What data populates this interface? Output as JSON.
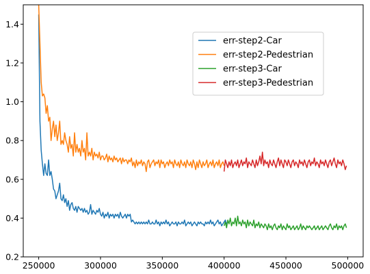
{
  "chart_data": {
    "type": "line",
    "title": "",
    "xlabel": "",
    "ylabel": "",
    "xlim": [
      237500,
      512500
    ],
    "ylim": [
      0.2,
      1.5
    ],
    "x_ticks": [
      250000,
      300000,
      350000,
      400000,
      450000,
      500000
    ],
    "x_tick_labels": [
      "250000",
      "300000",
      "350000",
      "400000",
      "450000",
      "500000"
    ],
    "y_ticks": [
      0.2,
      0.4,
      0.6,
      0.8,
      1.0,
      1.2,
      1.4
    ],
    "y_tick_labels": [
      "0.2",
      "0.4",
      "0.6",
      "0.8",
      "1.0",
      "1.2",
      "1.4"
    ],
    "grid": false,
    "legend_position": "upper-right",
    "series": [
      {
        "name": "err-step2-Car",
        "color": "#1f77b4",
        "x_start": 250000,
        "x_step": 1000,
        "values": [
          1.45,
          0.9,
          0.75,
          0.68,
          0.62,
          0.68,
          0.63,
          0.62,
          0.7,
          0.62,
          0.64,
          0.6,
          0.55,
          0.54,
          0.5,
          0.52,
          0.54,
          0.58,
          0.5,
          0.49,
          0.52,
          0.48,
          0.5,
          0.46,
          0.49,
          0.44,
          0.47,
          0.48,
          0.45,
          0.44,
          0.46,
          0.43,
          0.46,
          0.45,
          0.44,
          0.45,
          0.43,
          0.45,
          0.43,
          0.44,
          0.42,
          0.43,
          0.47,
          0.42,
          0.44,
          0.43,
          0.42,
          0.44,
          0.43,
          0.45,
          0.42,
          0.41,
          0.43,
          0.4,
          0.42,
          0.41,
          0.43,
          0.4,
          0.42,
          0.41,
          0.42,
          0.4,
          0.42,
          0.41,
          0.42,
          0.4,
          0.43,
          0.41,
          0.4,
          0.41,
          0.42,
          0.4,
          0.42,
          0.41,
          0.42,
          0.38,
          0.39,
          0.38,
          0.37,
          0.38,
          0.37,
          0.38,
          0.37,
          0.38,
          0.37,
          0.38,
          0.37,
          0.38,
          0.37,
          0.39,
          0.37,
          0.37,
          0.38,
          0.37,
          0.37,
          0.39,
          0.37,
          0.38,
          0.36,
          0.38,
          0.37,
          0.38,
          0.37,
          0.39,
          0.37,
          0.38,
          0.36,
          0.37,
          0.38,
          0.37,
          0.37,
          0.38,
          0.36,
          0.38,
          0.37,
          0.37,
          0.38,
          0.37,
          0.39,
          0.36,
          0.37,
          0.38,
          0.37,
          0.38,
          0.36,
          0.37,
          0.38,
          0.37,
          0.36,
          0.38,
          0.37,
          0.38,
          0.37,
          0.37,
          0.36,
          0.38,
          0.37,
          0.38,
          0.37,
          0.39,
          0.37,
          0.38,
          0.36,
          0.37,
          0.38,
          0.39,
          0.37,
          0.38,
          0.36,
          0.37,
          0.38,
          0.39,
          0.37,
          0.38
        ]
      },
      {
        "name": "err-step2-Pedestrian",
        "color": "#ff7f0e",
        "x_start": 250000,
        "x_step": 1000,
        "values": [
          1.5,
          1.3,
          1.1,
          1.03,
          1.04,
          1.02,
          0.94,
          0.98,
          0.9,
          0.92,
          0.8,
          0.86,
          0.9,
          0.82,
          0.88,
          0.8,
          0.84,
          0.9,
          0.78,
          0.8,
          0.78,
          0.84,
          0.8,
          0.78,
          0.74,
          0.82,
          0.76,
          0.78,
          0.72,
          0.84,
          0.74,
          0.78,
          0.74,
          0.76,
          0.72,
          0.8,
          0.74,
          0.76,
          0.7,
          0.84,
          0.72,
          0.74,
          0.72,
          0.76,
          0.7,
          0.74,
          0.72,
          0.73,
          0.71,
          0.74,
          0.7,
          0.72,
          0.72,
          0.7,
          0.71,
          0.73,
          0.69,
          0.72,
          0.7,
          0.71,
          0.69,
          0.72,
          0.7,
          0.71,
          0.69,
          0.7,
          0.71,
          0.68,
          0.71,
          0.69,
          0.7,
          0.7,
          0.68,
          0.7,
          0.69,
          0.71,
          0.67,
          0.69,
          0.66,
          0.7,
          0.67,
          0.69,
          0.68,
          0.7,
          0.67,
          0.69,
          0.68,
          0.64,
          0.69,
          0.7,
          0.66,
          0.68,
          0.69,
          0.7,
          0.67,
          0.69,
          0.68,
          0.7,
          0.66,
          0.7,
          0.68,
          0.69,
          0.66,
          0.68,
          0.69,
          0.67,
          0.7,
          0.68,
          0.69,
          0.66,
          0.7,
          0.68,
          0.67,
          0.69,
          0.66,
          0.7,
          0.68,
          0.67,
          0.69,
          0.66,
          0.7,
          0.68,
          0.67,
          0.69,
          0.66,
          0.7,
          0.68,
          0.65,
          0.69,
          0.66,
          0.7,
          0.68,
          0.66,
          0.69,
          0.67,
          0.68,
          0.7,
          0.66,
          0.68,
          0.69,
          0.67,
          0.7,
          0.66,
          0.68,
          0.69,
          0.67,
          0.7,
          0.66,
          0.68,
          0.69,
          0.67
        ]
      },
      {
        "name": "err-step3-Car",
        "color": "#2ca02c",
        "x_start": 400000,
        "x_step": 1000,
        "values": [
          0.36,
          0.38,
          0.35,
          0.39,
          0.37,
          0.4,
          0.36,
          0.38,
          0.37,
          0.4,
          0.36,
          0.41,
          0.37,
          0.38,
          0.36,
          0.39,
          0.37,
          0.38,
          0.35,
          0.39,
          0.36,
          0.38,
          0.37,
          0.36,
          0.39,
          0.35,
          0.37,
          0.36,
          0.38,
          0.35,
          0.37,
          0.36,
          0.35,
          0.37,
          0.36,
          0.34,
          0.37,
          0.35,
          0.36,
          0.34,
          0.36,
          0.37,
          0.35,
          0.34,
          0.36,
          0.35,
          0.37,
          0.34,
          0.36,
          0.35,
          0.34,
          0.37,
          0.35,
          0.36,
          0.34,
          0.35,
          0.36,
          0.34,
          0.35,
          0.36,
          0.34,
          0.35,
          0.37,
          0.34,
          0.36,
          0.35,
          0.34,
          0.36,
          0.35,
          0.36,
          0.35,
          0.34,
          0.35,
          0.36,
          0.34,
          0.35,
          0.36,
          0.34,
          0.35,
          0.36,
          0.34,
          0.35,
          0.36,
          0.35,
          0.34,
          0.36,
          0.37,
          0.35,
          0.34,
          0.36,
          0.35,
          0.37,
          0.34,
          0.36,
          0.35,
          0.36,
          0.34,
          0.36,
          0.37,
          0.35
        ]
      },
      {
        "name": "err-step3-Pedestrian",
        "color": "#d62728",
        "x_start": 400000,
        "x_step": 1000,
        "values": [
          0.64,
          0.7,
          0.68,
          0.66,
          0.69,
          0.67,
          0.7,
          0.66,
          0.68,
          0.69,
          0.67,
          0.7,
          0.66,
          0.68,
          0.7,
          0.67,
          0.69,
          0.68,
          0.71,
          0.66,
          0.69,
          0.68,
          0.67,
          0.7,
          0.68,
          0.66,
          0.7,
          0.67,
          0.69,
          0.72,
          0.68,
          0.74,
          0.67,
          0.7,
          0.68,
          0.69,
          0.66,
          0.7,
          0.68,
          0.67,
          0.7,
          0.68,
          0.66,
          0.69,
          0.71,
          0.67,
          0.7,
          0.68,
          0.66,
          0.7,
          0.69,
          0.67,
          0.7,
          0.68,
          0.66,
          0.69,
          0.7,
          0.67,
          0.69,
          0.68,
          0.66,
          0.7,
          0.68,
          0.69,
          0.67,
          0.7,
          0.68,
          0.66,
          0.69,
          0.7,
          0.67,
          0.69,
          0.68,
          0.71,
          0.67,
          0.69,
          0.68,
          0.66,
          0.7,
          0.68,
          0.69,
          0.67,
          0.7,
          0.68,
          0.66,
          0.69,
          0.7,
          0.67,
          0.69,
          0.71,
          0.68,
          0.66,
          0.7,
          0.68,
          0.69,
          0.67,
          0.7,
          0.68,
          0.65,
          0.67
        ]
      }
    ]
  }
}
